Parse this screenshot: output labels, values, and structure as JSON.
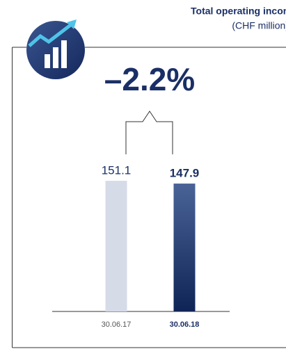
{
  "chart_data": {
    "type": "bar",
    "title": "Total operating income",
    "subtitle": "(CHF million)",
    "annotation": "–2.2%",
    "categories": [
      "30.06.17",
      "30.06.18"
    ],
    "values": [
      151.1,
      147.9
    ],
    "colors": [
      "#d6dbe8",
      "#1a2f66"
    ],
    "ylim": [
      0,
      160
    ]
  }
}
